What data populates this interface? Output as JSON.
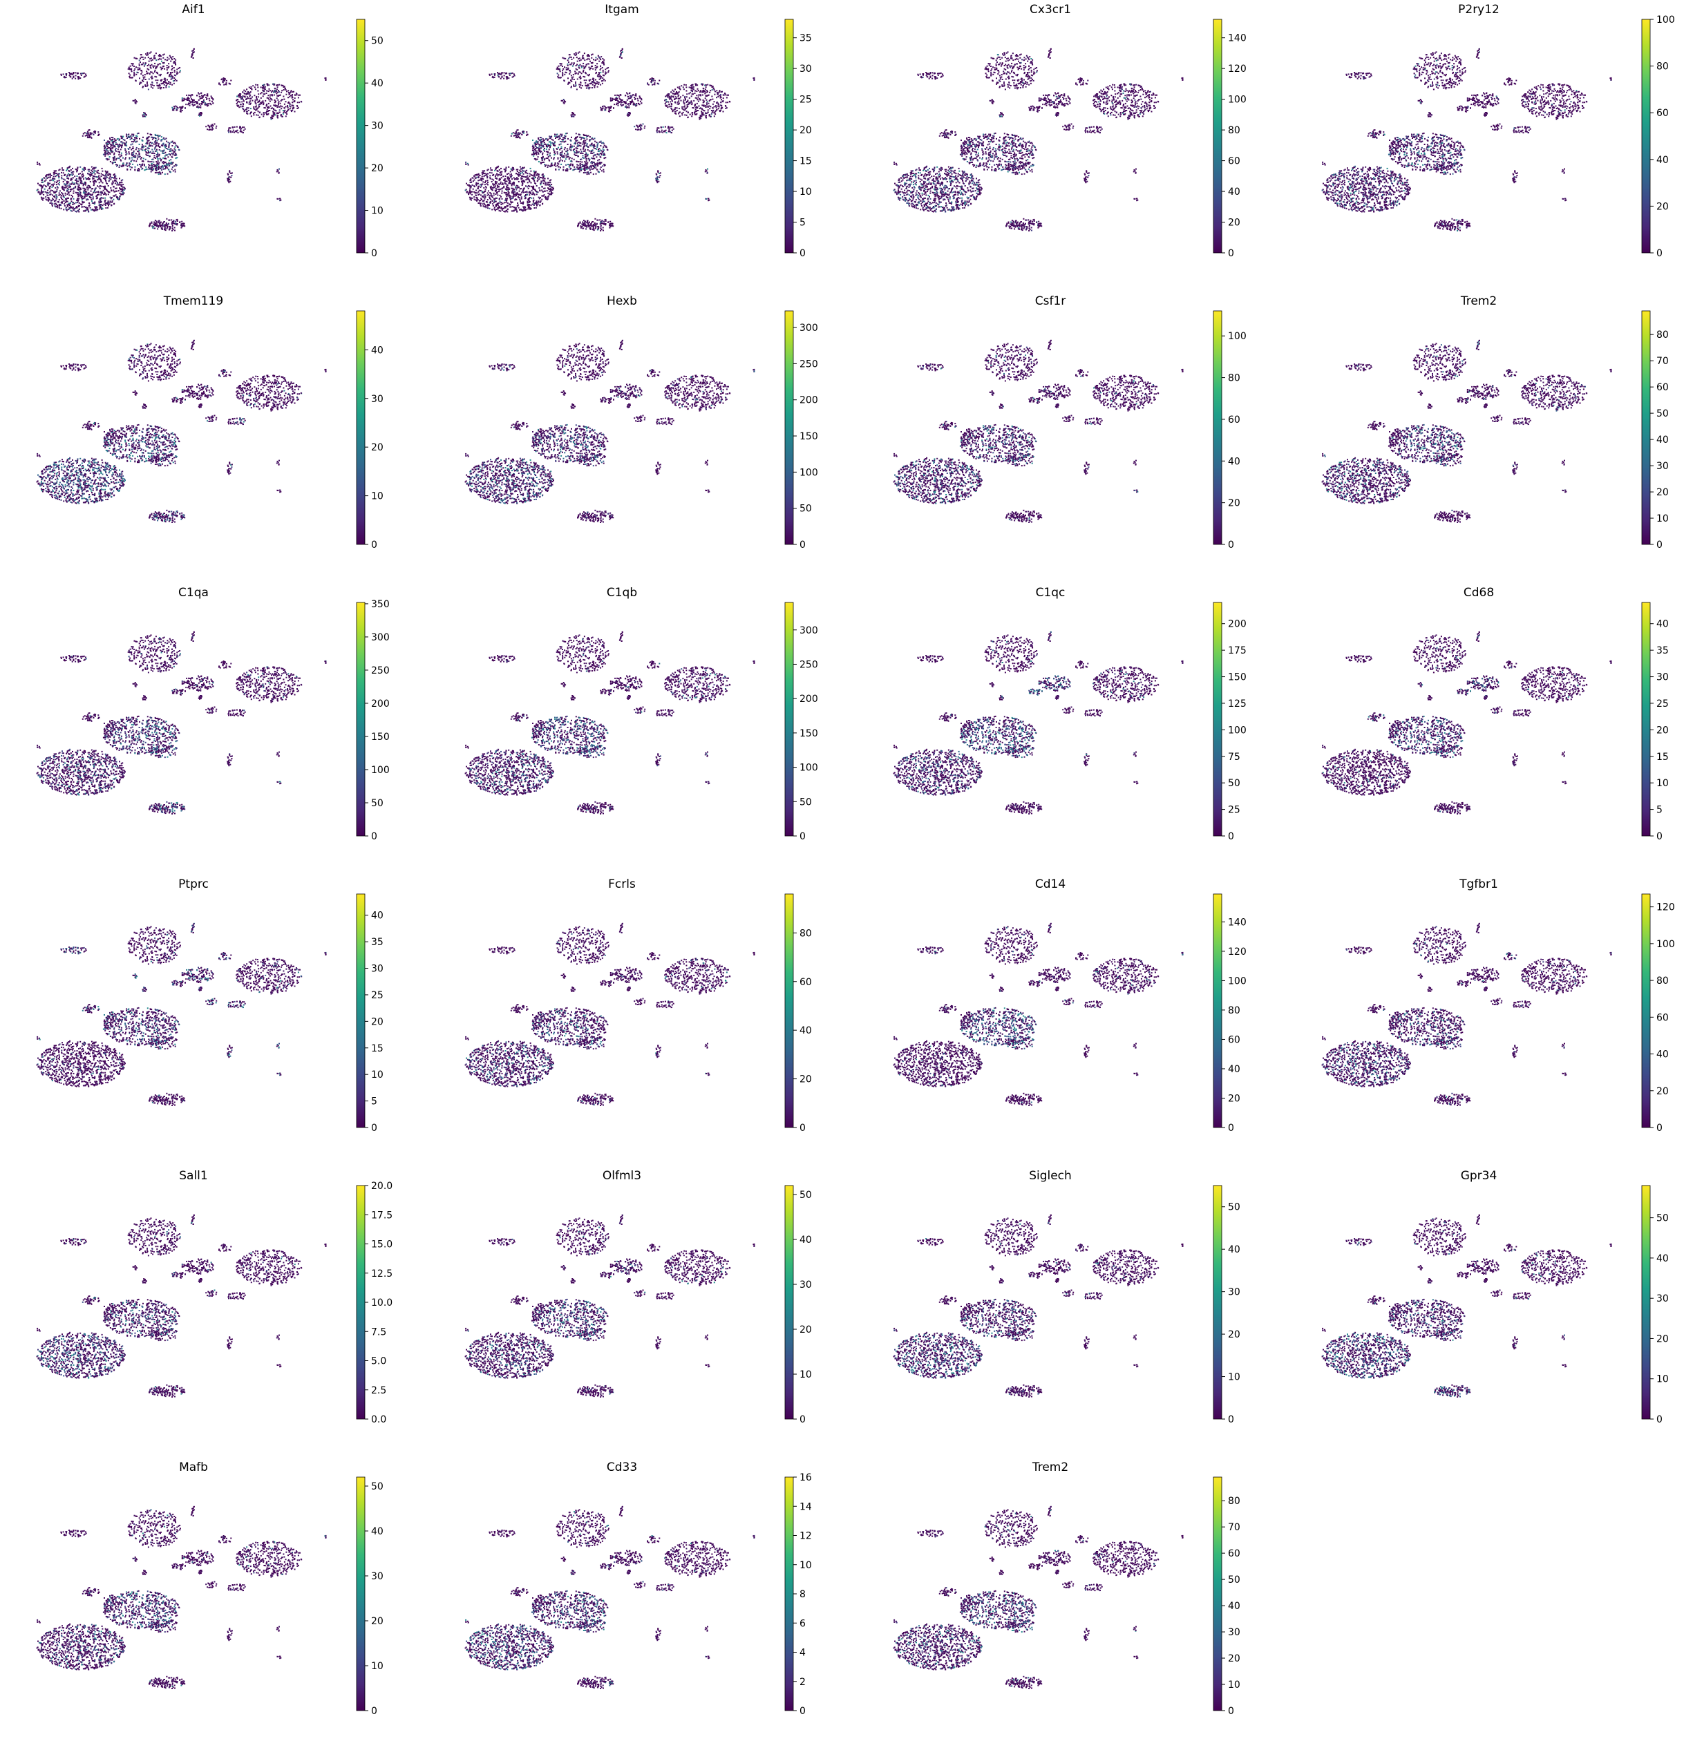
{
  "chart_data": [
    {
      "type": "scatter",
      "title": "Aif1",
      "colorbar": {
        "ticks": [
          "0",
          "10",
          "20",
          "30",
          "40",
          "50"
        ],
        "max": 55
      },
      "colormap": "viridis"
    },
    {
      "type": "scatter",
      "title": "Itgam",
      "colorbar": {
        "ticks": [
          "0",
          "5",
          "10",
          "15",
          "20",
          "25",
          "30",
          "35"
        ],
        "max": 38
      },
      "colormap": "viridis"
    },
    {
      "type": "scatter",
      "title": "Cx3cr1",
      "colorbar": {
        "ticks": [
          "0",
          "20",
          "40",
          "60",
          "80",
          "100",
          "120",
          "140"
        ],
        "max": 152
      },
      "colormap": "viridis"
    },
    {
      "type": "scatter",
      "title": "P2ry12",
      "colorbar": {
        "ticks": [
          "0",
          "20",
          "40",
          "60",
          "80",
          "100"
        ],
        "max": 100
      },
      "colormap": "viridis"
    },
    {
      "type": "scatter",
      "title": "Tmem119",
      "colorbar": {
        "ticks": [
          "0",
          "10",
          "20",
          "30",
          "40"
        ],
        "max": 48
      },
      "colormap": "viridis"
    },
    {
      "type": "scatter",
      "title": "Hexb",
      "colorbar": {
        "ticks": [
          "0",
          "50",
          "100",
          "150",
          "200",
          "250",
          "300"
        ],
        "max": 323
      },
      "colormap": "viridis"
    },
    {
      "type": "scatter",
      "title": "Csf1r",
      "colorbar": {
        "ticks": [
          "0",
          "20",
          "40",
          "60",
          "80",
          "100"
        ],
        "max": 112
      },
      "colormap": "viridis"
    },
    {
      "type": "scatter",
      "title": "Trem2",
      "colorbar": {
        "ticks": [
          "0",
          "10",
          "20",
          "30",
          "40",
          "50",
          "60",
          "70",
          "80"
        ],
        "max": 89
      },
      "colormap": "viridis"
    },
    {
      "type": "scatter",
      "title": "C1qa",
      "colorbar": {
        "ticks": [
          "0",
          "50",
          "100",
          "150",
          "200",
          "250",
          "300",
          "350"
        ],
        "max": 352
      },
      "colormap": "viridis"
    },
    {
      "type": "scatter",
      "title": "C1qb",
      "colorbar": {
        "ticks": [
          "0",
          "50",
          "100",
          "150",
          "200",
          "250",
          "300"
        ],
        "max": 340
      },
      "colormap": "viridis"
    },
    {
      "type": "scatter",
      "title": "C1qc",
      "colorbar": {
        "ticks": [
          "0",
          "25",
          "50",
          "75",
          "100",
          "125",
          "150",
          "175",
          "200"
        ],
        "max": 220
      },
      "colormap": "viridis"
    },
    {
      "type": "scatter",
      "title": "Cd68",
      "colorbar": {
        "ticks": [
          "0",
          "5",
          "10",
          "15",
          "20",
          "25",
          "30",
          "35",
          "40"
        ],
        "max": 44
      },
      "colormap": "viridis"
    },
    {
      "type": "scatter",
      "title": "Ptprc",
      "colorbar": {
        "ticks": [
          "0",
          "5",
          "10",
          "15",
          "20",
          "25",
          "30",
          "35",
          "40"
        ],
        "max": 44
      },
      "colormap": "viridis"
    },
    {
      "type": "scatter",
      "title": "Fcrls",
      "colorbar": {
        "ticks": [
          "0",
          "20",
          "40",
          "60",
          "80"
        ],
        "max": 96
      },
      "colormap": "viridis"
    },
    {
      "type": "scatter",
      "title": "Cd14",
      "colorbar": {
        "ticks": [
          "0",
          "20",
          "40",
          "60",
          "80",
          "100",
          "120",
          "140"
        ],
        "max": 159
      },
      "colormap": "viridis"
    },
    {
      "type": "scatter",
      "title": "Tgfbr1",
      "colorbar": {
        "ticks": [
          "0",
          "20",
          "40",
          "60",
          "80",
          "100",
          "120"
        ],
        "max": 127
      },
      "colormap": "viridis"
    },
    {
      "type": "scatter",
      "title": "Sall1",
      "colorbar": {
        "ticks": [
          "0.0",
          "2.5",
          "5.0",
          "7.5",
          "10.0",
          "12.5",
          "15.0",
          "17.5",
          "20.0"
        ],
        "max": 20
      },
      "colormap": "viridis"
    },
    {
      "type": "scatter",
      "title": "Olfml3",
      "colorbar": {
        "ticks": [
          "0",
          "10",
          "20",
          "30",
          "40",
          "50"
        ],
        "max": 52
      },
      "colormap": "viridis"
    },
    {
      "type": "scatter",
      "title": "Siglech",
      "colorbar": {
        "ticks": [
          "0",
          "10",
          "20",
          "30",
          "40",
          "50"
        ],
        "max": 55
      },
      "colormap": "viridis"
    },
    {
      "type": "scatter",
      "title": "Gpr34",
      "colorbar": {
        "ticks": [
          "0",
          "10",
          "20",
          "30",
          "40",
          "50"
        ],
        "max": 58
      },
      "colormap": "viridis"
    },
    {
      "type": "scatter",
      "title": "Mafb",
      "colorbar": {
        "ticks": [
          "0",
          "10",
          "20",
          "30",
          "40",
          "50"
        ],
        "max": 52
      },
      "colormap": "viridis"
    },
    {
      "type": "scatter",
      "title": "Cd33",
      "colorbar": {
        "ticks": [
          "0",
          "2",
          "4",
          "6",
          "8",
          "10",
          "12",
          "14",
          "16"
        ],
        "max": 16
      },
      "colormap": "viridis"
    },
    {
      "type": "scatter",
      "title": "Trem2",
      "colorbar": {
        "ticks": [
          "0",
          "10",
          "20",
          "30",
          "40",
          "50",
          "60",
          "70",
          "80"
        ],
        "max": 89
      },
      "colormap": "viridis"
    }
  ]
}
